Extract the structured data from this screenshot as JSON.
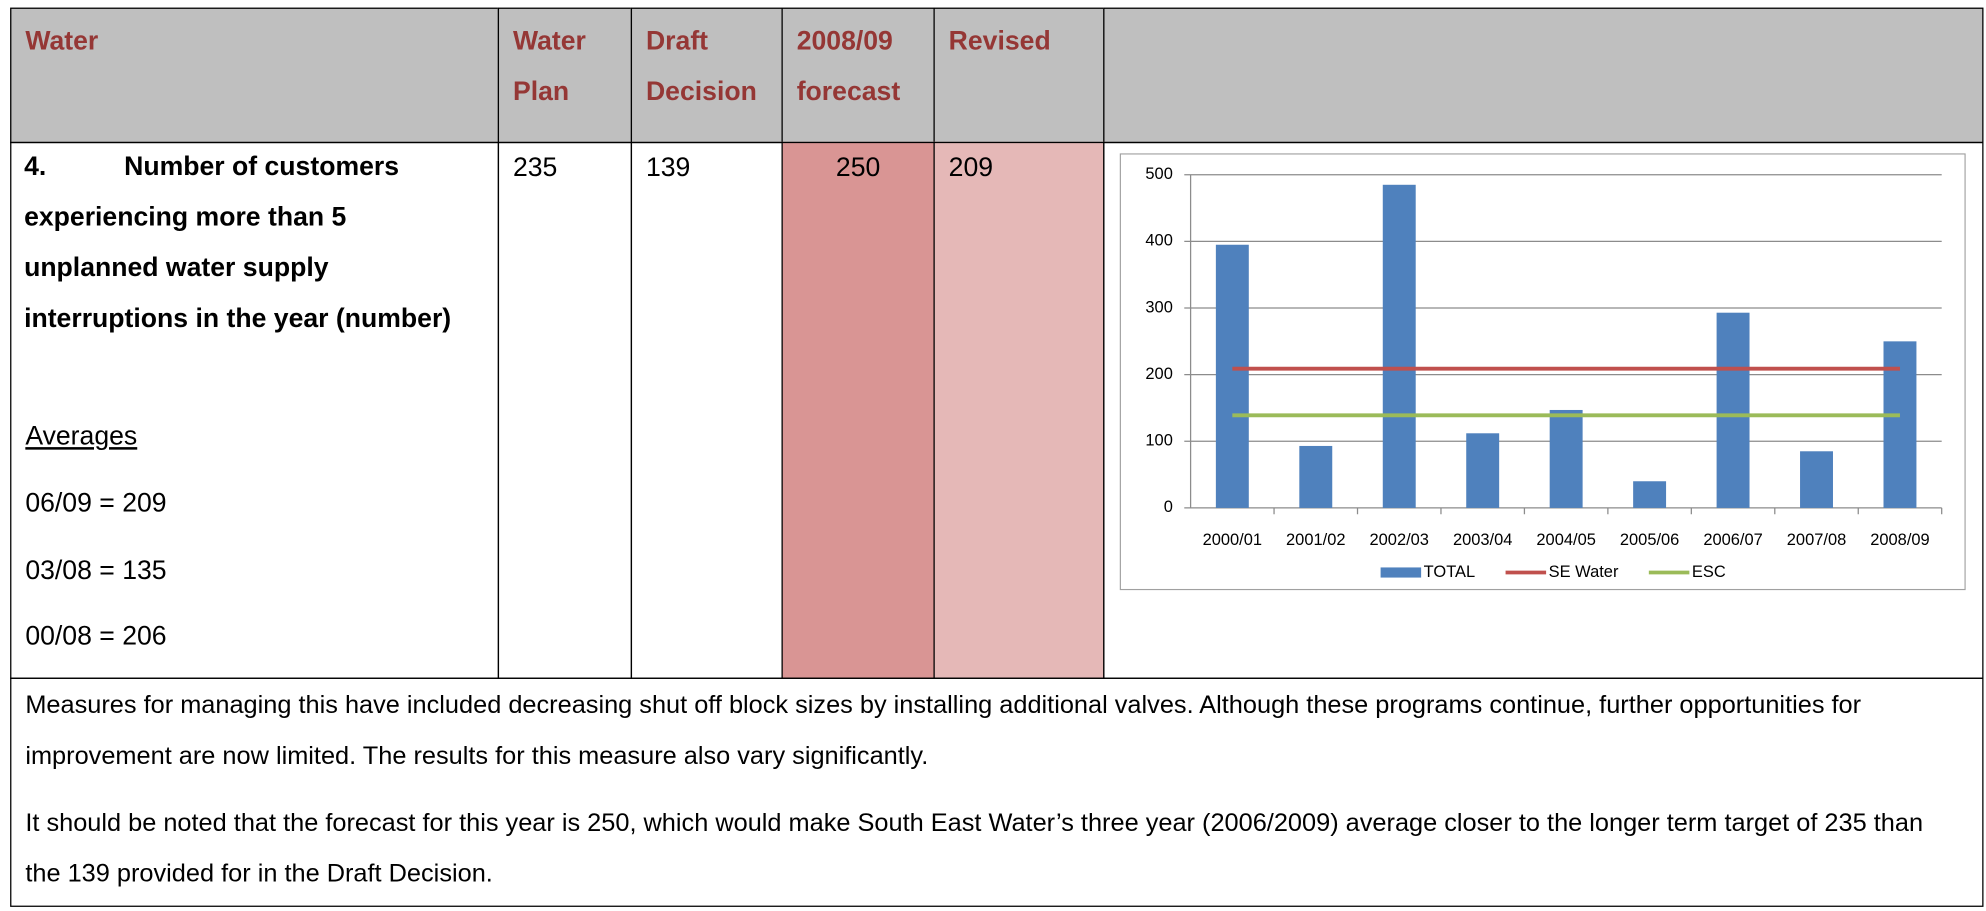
{
  "table": {
    "header": [
      "Water",
      "Water Plan",
      "Draft Decision",
      "2008/09 forecast",
      "Revised"
    ],
    "row": {
      "item_number": "4.",
      "label": "Number of customers experiencing more than 5 unplanned water supply interruptions in the year (number)",
      "averages_heading": "Averages",
      "averages": [
        "06/09 = 209",
        "03/08 = 135",
        "00/08 = 206"
      ],
      "values": [
        235,
        139,
        250,
        209
      ]
    },
    "notes": [
      "Measures for managing this have included decreasing shut off block sizes by installing additional valves.  Although these programs continue, further opportunities for improvement are now limited.  The results for this measure also vary significantly.",
      "It should be noted that the forecast for this year is 250, which would make South East Water’s three year (2006/2009) average closer to the longer term target of 235 than the 139 provided for in the Draft Decision."
    ]
  },
  "chart_data": {
    "type": "bar",
    "categories": [
      "2000/01",
      "2001/02",
      "2002/03",
      "2003/04",
      "2004/05",
      "2005/06",
      "2006/07",
      "2007/08",
      "2008/09"
    ],
    "series": [
      {
        "name": "TOTAL",
        "type": "bar",
        "color": "#4f81bd",
        "values": [
          395,
          93,
          485,
          112,
          147,
          40,
          293,
          85,
          250
        ]
      },
      {
        "name": "SE Water",
        "type": "line",
        "color": "#c0504d",
        "values": [
          209,
          209,
          209,
          209,
          209,
          209,
          209,
          209,
          209
        ]
      },
      {
        "name": "ESC",
        "type": "line",
        "color": "#9bbb59",
        "values": [
          139,
          139,
          139,
          139,
          139,
          139,
          139,
          139,
          139
        ]
      }
    ],
    "ylim": [
      0,
      500
    ],
    "yticks": [
      0,
      100,
      200,
      300,
      400,
      500
    ],
    "grid": true,
    "legend": "bottom"
  }
}
